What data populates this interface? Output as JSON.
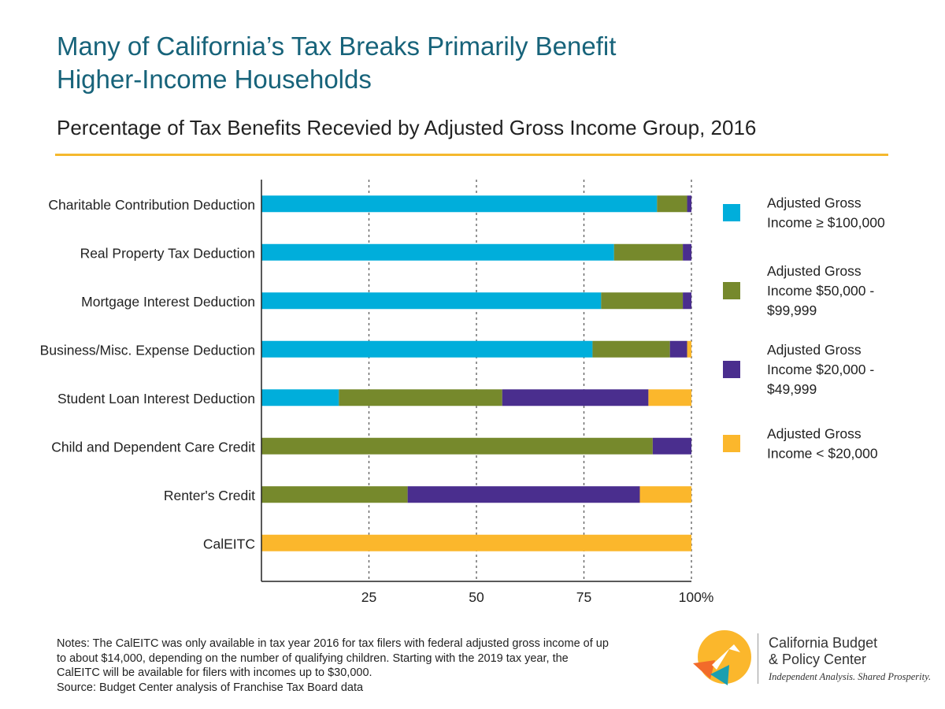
{
  "header": {
    "title_line1": "Many of California’s Tax Breaks Primarily Benefit",
    "title_line2": "Higher-Income Households",
    "subtitle": "Percentage of Tax Benefits Recevied by Adjusted Gross Income Group, 2016"
  },
  "chart_data": {
    "type": "bar",
    "orientation": "horizontal",
    "stacked": true,
    "categories": [
      "Charitable Contribution Deduction",
      "Real Property Tax Deduction",
      "Mortgage Interest Deduction",
      "Business/Misc. Expense Deduction",
      "Student Loan Interest Deduction",
      "Child and Dependent Care Credit",
      "Renter's Credit",
      "CalEITC"
    ],
    "series": [
      {
        "name_lines": [
          "Adjusted Gross",
          "Income ≥ $100,000"
        ],
        "color": "#00aedb",
        "values": [
          92,
          82,
          79,
          77,
          18,
          0,
          0,
          0
        ]
      },
      {
        "name_lines": [
          "Adjusted Gross",
          "Income $50,000 -",
          "$99,999"
        ],
        "color": "#76892c",
        "values": [
          7,
          16,
          19,
          18,
          38,
          91,
          34,
          0
        ]
      },
      {
        "name_lines": [
          "Adjusted Gross",
          "Income $20,000 -",
          "$49,999"
        ],
        "color": "#4a2e8e",
        "values": [
          1,
          2,
          2,
          4,
          34,
          9,
          54,
          0
        ]
      },
      {
        "name_lines": [
          "Adjusted Gross",
          "Income < $20,000"
        ],
        "color": "#fbb72c",
        "values": [
          0,
          0,
          0,
          1,
          10,
          0,
          12,
          100
        ]
      }
    ],
    "x_ticks": [
      25,
      50,
      75,
      100
    ],
    "x_tick_labels": [
      "25",
      "50",
      "75",
      "100%"
    ],
    "xlim": [
      0,
      100
    ],
    "grid": "vertical dashed",
    "legend_position": "right"
  },
  "notes": {
    "line1": "Notes: The CalEITC was only available in tax year 2016 for tax filers with federal adjusted gross income of up",
    "line2": "to about $14,000, depending on the number of qualifying children. Starting with the 2019 tax year, the",
    "line3": "CalEITC will be available for filers with incomes up to $30,000.",
    "source": "Source: Budget Center analysis of Franchise Tax Board data"
  },
  "brand": {
    "name_line1": "California Budget",
    "name_line2": "& Policy Center",
    "tagline": "Independent Analysis. Shared Prosperity."
  },
  "colors": {
    "title": "#17637a",
    "rule": "#f5b82e",
    "logo_yellow": "#fbb72c",
    "logo_orange": "#f26b2a",
    "logo_teal": "#1a9fb0"
  }
}
